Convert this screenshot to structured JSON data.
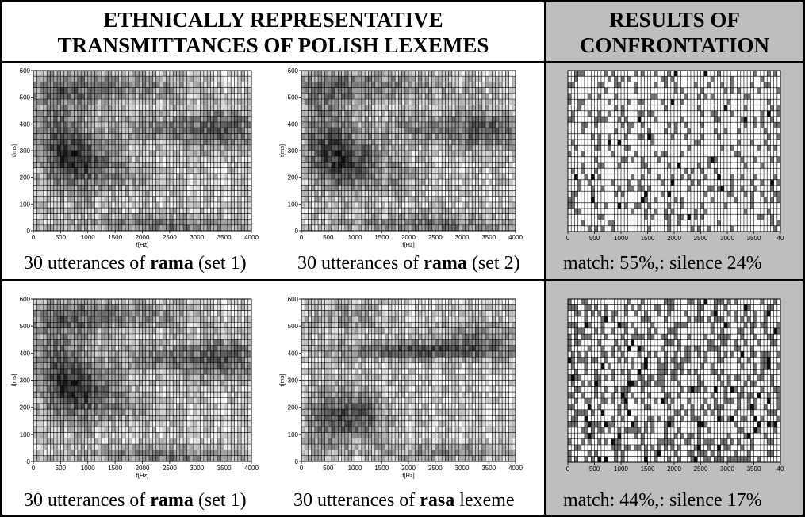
{
  "header": {
    "left_title_line1": "ETHNICALLY REPRESENTATIVE",
    "left_title_line2": "TRANSMITTANCES OF POLISH LEXEMES",
    "right_title_line1": "RESULTS OF",
    "right_title_line2": "CONFRONTATION"
  },
  "colors": {
    "result_panel_bg": "#bebebe",
    "border": "#000000"
  },
  "rows": [
    {
      "captions": [
        {
          "prefix": "30 utterances of ",
          "word": "rama",
          "suffix": " (set 1)"
        },
        {
          "prefix": "30 utterances of ",
          "word": "rama",
          "suffix": " (set 2)"
        }
      ],
      "result": "match: 55%,: silence 24%"
    },
    {
      "captions": [
        {
          "prefix": "30 utterances of ",
          "word": "rama",
          "suffix": " (set 1)"
        },
        {
          "prefix": "30 utterances of ",
          "word": "rasa",
          "suffix": " lexeme"
        }
      ],
      "result": "match: 44%,: silence 17%"
    }
  ],
  "chart_data": [
    {
      "type": "heatmap",
      "xlabel": "f[Hz]",
      "ylabel": "t[ms]",
      "xlim": [
        0,
        4000
      ],
      "ylim": [
        0,
        600
      ],
      "xticks": [
        "0",
        "500",
        "1000",
        "1500",
        "2000",
        "2500",
        "3000",
        "3500",
        "4000"
      ],
      "yticks": [
        "0",
        "100",
        "200",
        "300",
        "400",
        "500",
        "600"
      ],
      "colormap": "grayscale"
    },
    {
      "type": "heatmap",
      "xlabel": "f[Hz]",
      "ylabel": "t[ms]",
      "xlim": [
        0,
        4000
      ],
      "ylim": [
        0,
        600
      ],
      "xticks": [
        "0",
        "500",
        "1000",
        "1500",
        "2000",
        "2500",
        "3000",
        "3500",
        "4000"
      ],
      "yticks": [
        "0",
        "100",
        "200",
        "300",
        "400",
        "500",
        "600"
      ],
      "colormap": "grayscale"
    },
    {
      "type": "heatmap",
      "xlim": [
        0,
        4000
      ],
      "xticks": [
        "0",
        "500",
        "1000",
        "1500",
        "2000",
        "2500",
        "3000",
        "3500",
        "40"
      ],
      "colormap": "grayscale"
    },
    {
      "type": "heatmap",
      "xlabel": "f[Hz]",
      "ylabel": "t[ms]",
      "xlim": [
        0,
        4000
      ],
      "ylim": [
        0,
        600
      ],
      "xticks": [
        "0",
        "500",
        "1000",
        "1500",
        "2000",
        "2500",
        "3000",
        "3500",
        "4000"
      ],
      "yticks": [
        "0",
        "100",
        "200",
        "300",
        "400",
        "500",
        "600"
      ],
      "colormap": "grayscale"
    },
    {
      "type": "heatmap",
      "xlabel": "f[Hz]",
      "ylabel": "t[ms]",
      "xlim": [
        0,
        4000
      ],
      "ylim": [
        0,
        600
      ],
      "xticks": [
        "0",
        "500",
        "1000",
        "1500",
        "2000",
        "2500",
        "3000",
        "3500",
        "4000"
      ],
      "yticks": [
        "0",
        "100",
        "200",
        "300",
        "400",
        "500",
        "600"
      ],
      "colormap": "grayscale"
    },
    {
      "type": "heatmap",
      "xlim": [
        0,
        4000
      ],
      "xticks": [
        "0",
        "500",
        "1000",
        "1500",
        "2000",
        "2500",
        "3000",
        "3500",
        "40"
      ],
      "colormap": "grayscale"
    }
  ]
}
